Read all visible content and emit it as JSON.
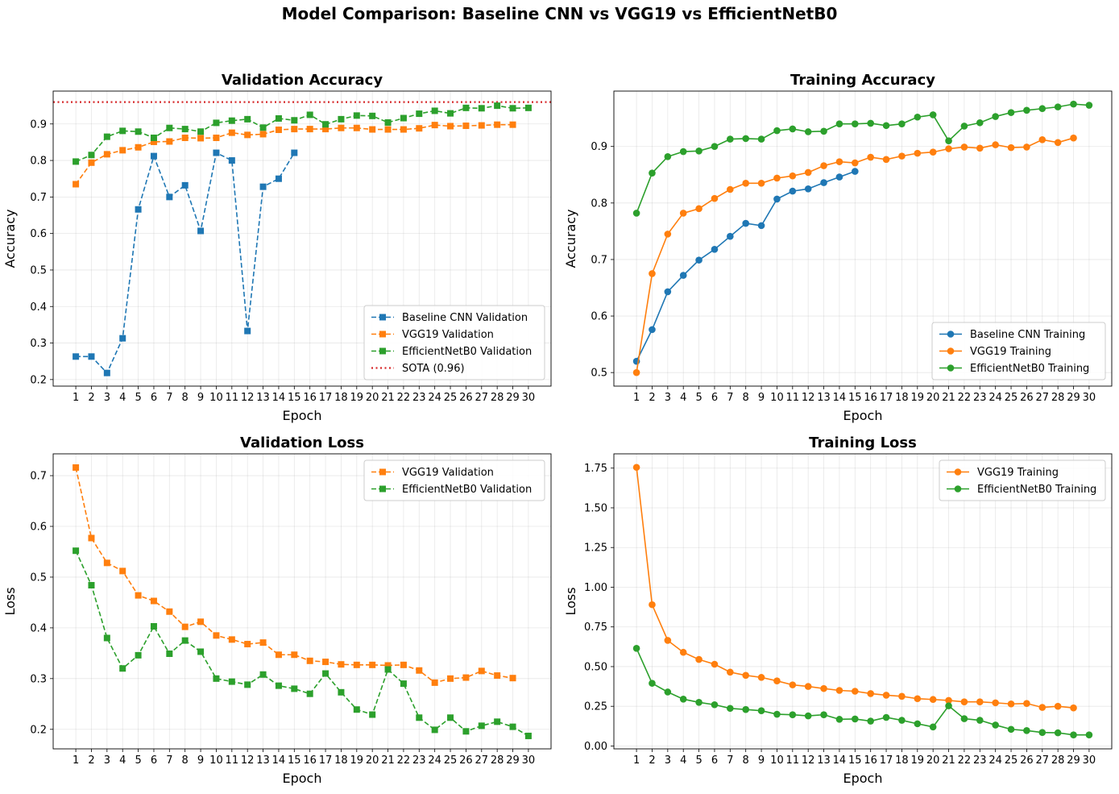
{
  "figure": {
    "title": "Model Comparison: Baseline CNN vs VGG19 vs EfficientNetB0"
  },
  "colors": {
    "baseline": "#1f77b4",
    "vgg19": "#ff7f0e",
    "efficientnet": "#2ca02c",
    "sota": "#d62728"
  },
  "chart_data": [
    {
      "type": "line",
      "title": "Validation Accuracy",
      "xlabel": "Epoch",
      "ylabel": "Accuracy",
      "x": [
        1,
        2,
        3,
        4,
        5,
        6,
        7,
        8,
        9,
        10,
        11,
        12,
        13,
        14,
        15,
        16,
        17,
        18,
        19,
        20,
        21,
        22,
        23,
        24,
        25,
        26,
        27,
        28,
        29,
        30
      ],
      "xlim": [
        -0.45,
        31.45
      ],
      "ylim": [
        0.182,
        0.99
      ],
      "yticks": [
        0.2,
        0.3,
        0.4,
        0.5,
        0.6,
        0.7,
        0.8,
        0.9
      ],
      "ytick_labels": [
        "0.2",
        "0.3",
        "0.4",
        "0.5",
        "0.6",
        "0.7",
        "0.8",
        "0.9"
      ],
      "grid": true,
      "legend": "lower right",
      "series": [
        {
          "name": "Baseline CNN Validation",
          "color_key": "baseline",
          "marker": "square",
          "dash": "dashed",
          "x": [
            1,
            2,
            3,
            4,
            5,
            6,
            7,
            8,
            9,
            10,
            11,
            12,
            13,
            14,
            15
          ],
          "values": [
            0.263,
            0.263,
            0.218,
            0.313,
            0.666,
            0.812,
            0.7,
            0.732,
            0.607,
            0.821,
            0.8,
            0.333,
            0.728,
            0.75,
            0.821
          ]
        },
        {
          "name": "VGG19 Validation",
          "color_key": "vgg19",
          "marker": "square",
          "dash": "dashed",
          "x": [
            1,
            2,
            3,
            4,
            5,
            6,
            7,
            8,
            9,
            10,
            11,
            12,
            13,
            14,
            15,
            16,
            17,
            18,
            19,
            20,
            21,
            22,
            23,
            24,
            25,
            26,
            27,
            28,
            29
          ],
          "values": [
            0.735,
            0.794,
            0.817,
            0.828,
            0.836,
            0.851,
            0.852,
            0.862,
            0.861,
            0.862,
            0.876,
            0.87,
            0.872,
            0.884,
            0.886,
            0.886,
            0.886,
            0.889,
            0.889,
            0.885,
            0.885,
            0.885,
            0.888,
            0.897,
            0.894,
            0.895,
            0.896,
            0.898,
            0.898
          ]
        },
        {
          "name": "EfficientNetB0 Validation",
          "color_key": "efficientnet",
          "marker": "square",
          "dash": "dashed",
          "x": [
            1,
            2,
            3,
            4,
            5,
            6,
            7,
            8,
            9,
            10,
            11,
            12,
            13,
            14,
            15,
            16,
            17,
            18,
            19,
            20,
            21,
            22,
            23,
            24,
            25,
            26,
            27,
            28,
            29,
            30
          ],
          "values": [
            0.797,
            0.815,
            0.865,
            0.881,
            0.879,
            0.862,
            0.889,
            0.886,
            0.879,
            0.903,
            0.909,
            0.913,
            0.89,
            0.915,
            0.91,
            0.925,
            0.899,
            0.913,
            0.923,
            0.922,
            0.904,
            0.916,
            0.928,
            0.936,
            0.929,
            0.944,
            0.943,
            0.95,
            0.943,
            0.944
          ]
        }
      ],
      "hline": {
        "name": "SOTA (0.96)",
        "value": 0.96,
        "color_key": "sota",
        "dash": "dotted"
      }
    },
    {
      "type": "line",
      "title": "Training Accuracy",
      "xlabel": "Epoch",
      "ylabel": "Accuracy",
      "x": [
        1,
        2,
        3,
        4,
        5,
        6,
        7,
        8,
        9,
        10,
        11,
        12,
        13,
        14,
        15,
        16,
        17,
        18,
        19,
        20,
        21,
        22,
        23,
        24,
        25,
        26,
        27,
        28,
        29,
        30
      ],
      "xlim": [
        -0.45,
        31.45
      ],
      "ylim": [
        0.476,
        0.998
      ],
      "yticks": [
        0.5,
        0.6,
        0.7,
        0.8,
        0.9
      ],
      "ytick_labels": [
        "0.5",
        "0.6",
        "0.7",
        "0.8",
        "0.9"
      ],
      "grid": true,
      "legend": "lower right",
      "series": [
        {
          "name": "Baseline CNN Training",
          "color_key": "baseline",
          "marker": "circle",
          "dash": "solid",
          "x": [
            1,
            2,
            3,
            4,
            5,
            6,
            7,
            8,
            9,
            10,
            11,
            12,
            13,
            14,
            15
          ],
          "values": [
            0.52,
            0.576,
            0.643,
            0.672,
            0.699,
            0.718,
            0.741,
            0.764,
            0.76,
            0.807,
            0.821,
            0.825,
            0.836,
            0.846,
            0.856
          ]
        },
        {
          "name": "VGG19 Training",
          "color_key": "vgg19",
          "marker": "circle",
          "dash": "solid",
          "x": [
            1,
            2,
            3,
            4,
            5,
            6,
            7,
            8,
            9,
            10,
            11,
            12,
            13,
            14,
            15,
            16,
            17,
            18,
            19,
            20,
            21,
            22,
            23,
            24,
            25,
            26,
            27,
            28,
            29
          ],
          "values": [
            0.5,
            0.675,
            0.745,
            0.782,
            0.79,
            0.808,
            0.824,
            0.835,
            0.835,
            0.844,
            0.848,
            0.854,
            0.866,
            0.873,
            0.871,
            0.881,
            0.877,
            0.883,
            0.888,
            0.89,
            0.896,
            0.899,
            0.897,
            0.903,
            0.898,
            0.899,
            0.912,
            0.907,
            0.915
          ]
        },
        {
          "name": "EfficientNetB0 Training",
          "color_key": "efficientnet",
          "marker": "circle",
          "dash": "solid",
          "x": [
            1,
            2,
            3,
            4,
            5,
            6,
            7,
            8,
            9,
            10,
            11,
            12,
            13,
            14,
            15,
            16,
            17,
            18,
            19,
            20,
            21,
            22,
            23,
            24,
            25,
            26,
            27,
            28,
            29,
            30
          ],
          "values": [
            0.782,
            0.853,
            0.882,
            0.891,
            0.892,
            0.9,
            0.913,
            0.914,
            0.913,
            0.928,
            0.931,
            0.926,
            0.927,
            0.94,
            0.94,
            0.941,
            0.937,
            0.94,
            0.952,
            0.956,
            0.91,
            0.936,
            0.942,
            0.953,
            0.96,
            0.964,
            0.967,
            0.97,
            0.975,
            0.973
          ]
        }
      ]
    },
    {
      "type": "line",
      "title": "Validation Loss",
      "xlabel": "Epoch",
      "ylabel": "Loss",
      "x": [
        1,
        2,
        3,
        4,
        5,
        6,
        7,
        8,
        9,
        10,
        11,
        12,
        13,
        14,
        15,
        16,
        17,
        18,
        19,
        20,
        21,
        22,
        23,
        24,
        25,
        26,
        27,
        28,
        29,
        30
      ],
      "xlim": [
        -0.45,
        31.45
      ],
      "ylim": [
        0.1615,
        0.743
      ],
      "yticks": [
        0.2,
        0.3,
        0.4,
        0.5,
        0.6,
        0.7
      ],
      "ytick_labels": [
        "0.2",
        "0.3",
        "0.4",
        "0.5",
        "0.6",
        "0.7"
      ],
      "grid": true,
      "legend": "upper right",
      "series": [
        {
          "name": "VGG19 Validation",
          "color_key": "vgg19",
          "marker": "square",
          "dash": "dashed",
          "x": [
            1,
            2,
            3,
            4,
            5,
            6,
            7,
            8,
            9,
            10,
            11,
            12,
            13,
            14,
            15,
            16,
            17,
            18,
            19,
            20,
            21,
            22,
            23,
            24,
            25,
            26,
            27,
            28,
            29
          ],
          "values": [
            0.716,
            0.577,
            0.528,
            0.512,
            0.464,
            0.453,
            0.432,
            0.402,
            0.412,
            0.385,
            0.377,
            0.368,
            0.371,
            0.347,
            0.347,
            0.335,
            0.333,
            0.328,
            0.327,
            0.327,
            0.326,
            0.327,
            0.316,
            0.292,
            0.3,
            0.302,
            0.315,
            0.306,
            0.301
          ]
        },
        {
          "name": "EfficientNetB0 Validation",
          "color_key": "efficientnet",
          "marker": "square",
          "dash": "dashed",
          "x": [
            1,
            2,
            3,
            4,
            5,
            6,
            7,
            8,
            9,
            10,
            11,
            12,
            13,
            14,
            15,
            16,
            17,
            18,
            19,
            20,
            21,
            22,
            23,
            24,
            25,
            26,
            27,
            28,
            29,
            30
          ],
          "values": [
            0.552,
            0.484,
            0.38,
            0.32,
            0.346,
            0.403,
            0.349,
            0.375,
            0.353,
            0.3,
            0.294,
            0.288,
            0.308,
            0.286,
            0.28,
            0.27,
            0.31,
            0.273,
            0.239,
            0.229,
            0.318,
            0.29,
            0.223,
            0.199,
            0.223,
            0.196,
            0.207,
            0.215,
            0.205,
            0.187
          ]
        }
      ]
    },
    {
      "type": "line",
      "title": "Training Loss",
      "xlabel": "Epoch",
      "ylabel": "Loss",
      "x": [
        1,
        2,
        3,
        4,
        5,
        6,
        7,
        8,
        9,
        10,
        11,
        12,
        13,
        14,
        15,
        16,
        17,
        18,
        19,
        20,
        21,
        22,
        23,
        24,
        25,
        26,
        27,
        28,
        29,
        30
      ],
      "xlim": [
        -0.45,
        31.45
      ],
      "ylim": [
        -0.018,
        1.84
      ],
      "yticks": [
        0.0,
        0.25,
        0.5,
        0.75,
        1.0,
        1.25,
        1.5,
        1.75
      ],
      "ytick_labels": [
        "0.00",
        "0.25",
        "0.50",
        "0.75",
        "1.00",
        "1.25",
        "1.50",
        "1.75"
      ],
      "grid": true,
      "legend": "upper right",
      "series": [
        {
          "name": "VGG19 Training",
          "color_key": "vgg19",
          "marker": "circle",
          "dash": "solid",
          "x": [
            1,
            2,
            3,
            4,
            5,
            6,
            7,
            8,
            9,
            10,
            11,
            12,
            13,
            14,
            15,
            16,
            17,
            18,
            19,
            20,
            21,
            22,
            23,
            24,
            25,
            26,
            27,
            28,
            29
          ],
          "values": [
            1.755,
            0.89,
            0.665,
            0.59,
            0.545,
            0.515,
            0.465,
            0.445,
            0.432,
            0.41,
            0.385,
            0.375,
            0.362,
            0.35,
            0.345,
            0.33,
            0.32,
            0.313,
            0.298,
            0.293,
            0.287,
            0.278,
            0.278,
            0.272,
            0.265,
            0.268,
            0.243,
            0.25,
            0.24
          ]
        },
        {
          "name": "EfficientNetB0 Training",
          "color_key": "efficientnet",
          "marker": "circle",
          "dash": "solid",
          "x": [
            1,
            2,
            3,
            4,
            5,
            6,
            7,
            8,
            9,
            10,
            11,
            12,
            13,
            14,
            15,
            16,
            17,
            18,
            19,
            20,
            21,
            22,
            23,
            24,
            25,
            26,
            27,
            28,
            29,
            30
          ],
          "values": [
            0.615,
            0.395,
            0.34,
            0.295,
            0.275,
            0.26,
            0.237,
            0.23,
            0.222,
            0.2,
            0.197,
            0.19,
            0.197,
            0.168,
            0.17,
            0.157,
            0.18,
            0.162,
            0.14,
            0.12,
            0.253,
            0.172,
            0.162,
            0.132,
            0.105,
            0.097,
            0.085,
            0.083,
            0.07,
            0.07
          ]
        }
      ]
    }
  ]
}
